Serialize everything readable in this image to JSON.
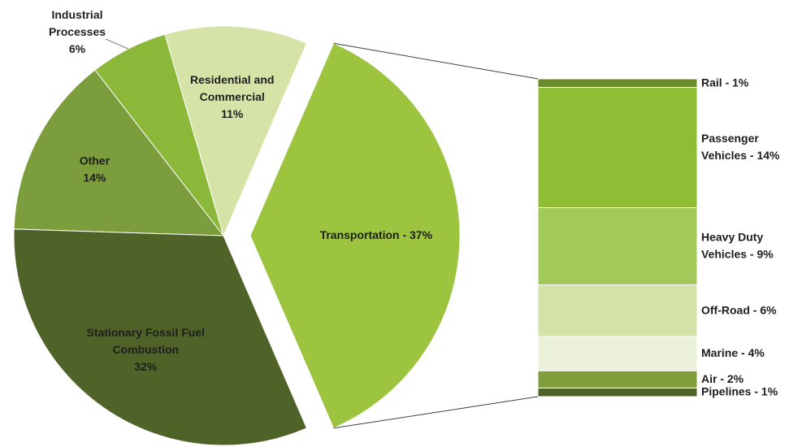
{
  "chart_data": [
    {
      "type": "pie",
      "labels": [
        "Transportation - 37%",
        "Residential and\nCommercial\n11%",
        "Industrial\nProcesses\n6%",
        "Other\n14%",
        "Stationary Fossil Fuel\nCombustion\n32%"
      ],
      "values": [
        37,
        11,
        6,
        14,
        32
      ],
      "colors": [
        "#9cc43f",
        "#d5e4a6",
        "#8cb83a",
        "#7b9d3b",
        "#4f6328"
      ]
    },
    {
      "type": "stacked_bar",
      "labels": [
        "Rail - 1%",
        "Passenger\nVehicles - 14%",
        "Heavy Duty\nVehicles - 9%",
        "Off-Road - 6%",
        "Marine - 4%",
        "Air - 2%",
        "Pipelines - 1%"
      ],
      "values": [
        1,
        14,
        9,
        6,
        4,
        2,
        1
      ],
      "colors": [
        "#6b8c2b",
        "#8fbd35",
        "#a3c95b",
        "#d3e2a6",
        "#ebf1da",
        "#7f9e3a",
        "#4f6328"
      ]
    }
  ]
}
